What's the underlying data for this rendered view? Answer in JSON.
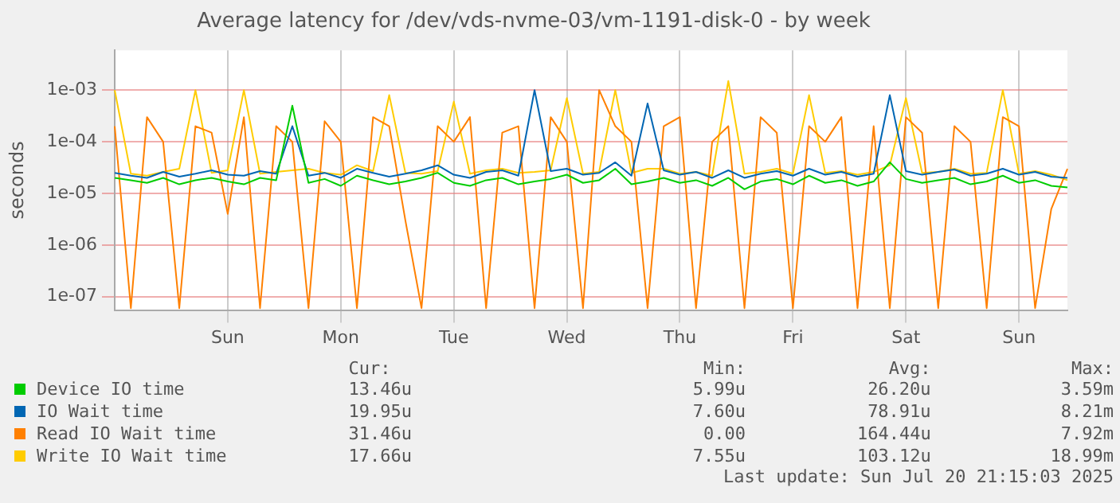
{
  "chart_data": {
    "type": "line",
    "title": "Average latency for /dev/vds-nvme-03/vm-1191-disk-0 - by week",
    "ylabel": "seconds",
    "log": "y",
    "grid": true,
    "legend": "bottom",
    "categories": [
      null,
      null,
      null,
      null,
      null,
      null,
      null,
      "Sun",
      null,
      null,
      null,
      null,
      null,
      null,
      "Mon",
      null,
      null,
      null,
      null,
      null,
      null,
      "Tue",
      null,
      null,
      null,
      null,
      null,
      null,
      "Wed",
      null,
      null,
      null,
      null,
      null,
      null,
      "Thu",
      null,
      null,
      null,
      null,
      null,
      null,
      "Fri",
      null,
      null,
      null,
      null,
      null,
      null,
      "Sat",
      null,
      null,
      null,
      null,
      null,
      null,
      "Sun",
      null,
      null,
      null
    ],
    "ylim": [
      5.5e-08,
      0.0059
    ],
    "yticks": [
      {
        "value": 1e-07,
        "label": "1e-07"
      },
      {
        "value": 1e-06,
        "label": "1e-06"
      },
      {
        "value": 1e-05,
        "label": "1e-05"
      },
      {
        "value": 0.0001,
        "label": "1e-04"
      },
      {
        "value": 0.001,
        "label": "1e-03"
      }
    ],
    "series": [
      {
        "name": "Device IO time",
        "color": "#00cc00",
        "values": [
          2e-05,
          1.8e-05,
          1.6e-05,
          2e-05,
          1.5e-05,
          1.8e-05,
          2e-05,
          1.7e-05,
          1.5e-05,
          2e-05,
          1.8e-05,
          0.0005,
          1.6e-05,
          1.9e-05,
          1.4e-05,
          2.2e-05,
          1.8e-05,
          1.5e-05,
          1.7e-05,
          2e-05,
          2.5e-05,
          1.6e-05,
          1.4e-05,
          1.8e-05,
          2e-05,
          1.5e-05,
          1.7e-05,
          1.9e-05,
          2.3e-05,
          1.6e-05,
          1.8e-05,
          3e-05,
          1.5e-05,
          1.7e-05,
          2e-05,
          1.6e-05,
          1.8e-05,
          1.4e-05,
          2e-05,
          1.2e-05,
          1.7e-05,
          1.9e-05,
          1.5e-05,
          2.2e-05,
          1.6e-05,
          1.8e-05,
          1.4e-05,
          1.7e-05,
          4e-05,
          1.9e-05,
          1.6e-05,
          1.8e-05,
          2e-05,
          1.5e-05,
          1.7e-05,
          2.2e-05,
          1.6e-05,
          1.8e-05,
          1.4e-05,
          1.3e-05
        ]
      },
      {
        "name": "IO Wait time",
        "color": "#0066b3",
        "values": [
          2.5e-05,
          2.2e-05,
          2e-05,
          2.6e-05,
          2.1e-05,
          2.4e-05,
          2.8e-05,
          2.3e-05,
          2.2e-05,
          2.7e-05,
          2.4e-05,
          0.0002,
          2.2e-05,
          2.5e-05,
          2e-05,
          3e-05,
          2.5e-05,
          2.1e-05,
          2.4e-05,
          2.8e-05,
          3.5e-05,
          2.3e-05,
          2e-05,
          2.6e-05,
          2.8e-05,
          2.2e-05,
          0.001,
          2.7e-05,
          3e-05,
          2.3e-05,
          2.5e-05,
          4e-05,
          2.2e-05,
          0.00055,
          2.8e-05,
          2.3e-05,
          2.6e-05,
          2e-05,
          2.8e-05,
          2e-05,
          2.4e-05,
          2.7e-05,
          2.2e-05,
          3e-05,
          2.3e-05,
          2.6e-05,
          2.1e-05,
          2.4e-05,
          0.0008,
          2.7e-05,
          2.3e-05,
          2.6e-05,
          2.9e-05,
          2.2e-05,
          2.4e-05,
          3e-05,
          2.3e-05,
          2.6e-05,
          2.1e-05,
          2e-05
        ]
      },
      {
        "name": "Read IO Wait time",
        "color": "#ff8000",
        "values": [
          0.0002,
          6e-08,
          0.0003,
          0.0001,
          6e-08,
          0.0002,
          0.00015,
          4e-06,
          0.0003,
          6e-08,
          0.0002,
          0.0001,
          6e-08,
          0.00025,
          0.0001,
          6e-08,
          0.0003,
          0.0002,
          3e-06,
          6e-08,
          0.0002,
          0.0001,
          0.0003,
          6e-08,
          0.00015,
          0.0002,
          6e-08,
          0.0003,
          0.0001,
          6e-08,
          0.001,
          0.0002,
          0.0001,
          6e-08,
          0.0002,
          0.0003,
          6e-08,
          0.0001,
          0.0002,
          6e-08,
          0.0003,
          0.00015,
          6e-08,
          0.0002,
          0.0001,
          0.0003,
          6e-08,
          0.0002,
          6e-08,
          0.0003,
          0.00015,
          6e-08,
          0.0002,
          0.0001,
          6e-08,
          0.0003,
          0.0002,
          6e-08,
          5e-06,
          3e-05
        ]
      },
      {
        "name": "Write IO Wait time",
        "color": "#ffcc00",
        "values": [
          0.001,
          2.4e-05,
          2.2e-05,
          2.6e-05,
          3e-05,
          0.001,
          2.5e-05,
          2.8e-05,
          0.001,
          2.4e-05,
          2.6e-05,
          2.8e-05,
          3e-05,
          2.5e-05,
          2.3e-05,
          3.5e-05,
          2.7e-05,
          0.0008,
          2.5e-05,
          2.4e-05,
          2.7e-05,
          0.0006,
          2.4e-05,
          2.8e-05,
          3e-05,
          2.5e-05,
          2.6e-05,
          2.8e-05,
          0.0007,
          2.4e-05,
          2.6e-05,
          0.001,
          2.5e-05,
          3e-05,
          3e-05,
          2.4e-05,
          2.6e-05,
          2.2e-05,
          0.0015,
          2.4e-05,
          2.6e-05,
          3e-05,
          2.4e-05,
          0.0008,
          2.5e-05,
          2.7e-05,
          2.3e-05,
          2.6e-05,
          3.5e-05,
          0.0007,
          2.5e-05,
          2.6e-05,
          3e-05,
          2.4e-05,
          2.5e-05,
          0.001,
          2.4e-05,
          2.7e-05,
          2.3e-05,
          1.8e-05
        ]
      }
    ],
    "annotations": [
      "Cur:",
      "Min:",
      "Avg:",
      "Max:",
      "13.46u",
      "5.99u",
      "26.20u",
      "3.59m",
      "19.95u",
      "7.60u",
      "78.91u",
      "8.21m",
      "31.46u",
      "0.00",
      "164.44u",
      "7.92m",
      "17.66u",
      "7.55u",
      "103.12u",
      "18.99m",
      "Last update: Sun Jul 20 21:15:03 2025"
    ]
  }
}
